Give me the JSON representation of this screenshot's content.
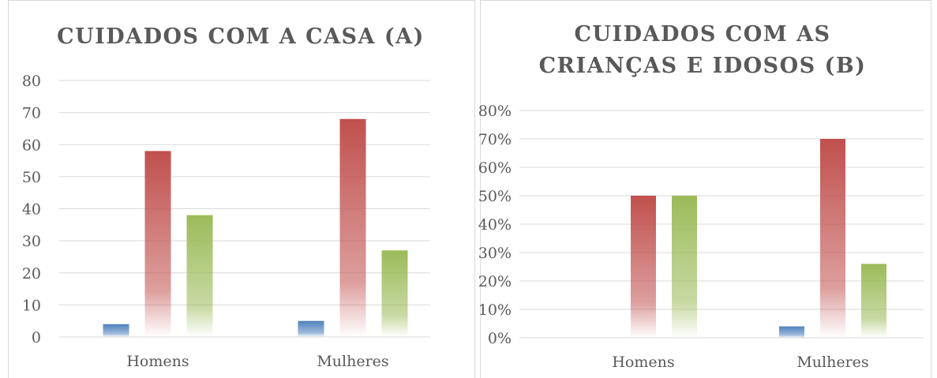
{
  "chart_data": [
    {
      "type": "bar",
      "title": [
        "CUIDADOS COM A CASA (A)"
      ],
      "categories": [
        "Homens",
        "Mulheres"
      ],
      "series": [
        {
          "color": "#4f81bd",
          "values": [
            4,
            5
          ]
        },
        {
          "color": "#c0504d",
          "values": [
            58,
            68
          ]
        },
        {
          "color": "#9bbb59",
          "values": [
            38,
            27
          ]
        }
      ],
      "ylim": [
        0,
        80
      ],
      "yticks": [
        0,
        10,
        20,
        30,
        40,
        50,
        60,
        70,
        80
      ],
      "grid": true
    },
    {
      "type": "bar",
      "title": [
        "CUIDADOS COM AS",
        "CRIANÇAS E IDOSOS (B)"
      ],
      "categories": [
        "Homens",
        "Mulheres"
      ],
      "series": [
        {
          "color": "#4f81bd",
          "values": [
            0,
            4
          ]
        },
        {
          "color": "#c0504d",
          "values": [
            50,
            70
          ]
        },
        {
          "color": "#9bbb59",
          "values": [
            50,
            26
          ]
        }
      ],
      "ylim": [
        0,
        80
      ],
      "yticks": [
        {
          "value": 0,
          "label": "0%"
        },
        {
          "value": 10,
          "label": "10%"
        },
        {
          "value": 20,
          "label": "20%"
        },
        {
          "value": 30,
          "label": "30%"
        },
        {
          "value": 40,
          "label": "40%"
        },
        {
          "value": 50,
          "label": "50%"
        },
        {
          "value": 60,
          "label": "60%"
        },
        {
          "value": 70,
          "label": "70%"
        },
        {
          "value": 80,
          "label": "80%"
        }
      ],
      "grid": true
    }
  ]
}
